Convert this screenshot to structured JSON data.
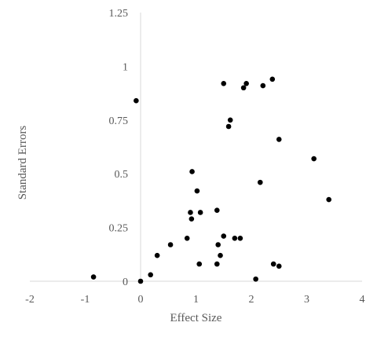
{
  "chart_data": {
    "type": "scatter",
    "title": "",
    "xlabel": "Effect Size",
    "ylabel": "Standard Errors",
    "xlim": [
      -2,
      4
    ],
    "ylim": [
      0,
      1.25
    ],
    "x_ticks": [
      "-2",
      "-1",
      "0",
      "1",
      "2",
      "3",
      "4"
    ],
    "y_ticks": [
      "0",
      "0.25",
      "0.5",
      "0.75",
      "1",
      "1.25"
    ],
    "grid": false,
    "legend": "none",
    "point_color": "#000000",
    "points": [
      {
        "x": -0.85,
        "y": 0.02
      },
      {
        "x": -0.08,
        "y": 0.84
      },
      {
        "x": 0.0,
        "y": 0.0
      },
      {
        "x": 0.18,
        "y": 0.03
      },
      {
        "x": 0.3,
        "y": 0.12
      },
      {
        "x": 0.54,
        "y": 0.17
      },
      {
        "x": 0.84,
        "y": 0.2
      },
      {
        "x": 0.9,
        "y": 0.32
      },
      {
        "x": 0.92,
        "y": 0.29
      },
      {
        "x": 0.93,
        "y": 0.51
      },
      {
        "x": 1.02,
        "y": 0.42
      },
      {
        "x": 1.06,
        "y": 0.08
      },
      {
        "x": 1.08,
        "y": 0.32
      },
      {
        "x": 1.38,
        "y": 0.08
      },
      {
        "x": 1.4,
        "y": 0.17
      },
      {
        "x": 1.38,
        "y": 0.33
      },
      {
        "x": 1.44,
        "y": 0.12
      },
      {
        "x": 1.5,
        "y": 0.21
      },
      {
        "x": 1.5,
        "y": 0.92
      },
      {
        "x": 1.59,
        "y": 0.72
      },
      {
        "x": 1.62,
        "y": 0.75
      },
      {
        "x": 1.7,
        "y": 0.2
      },
      {
        "x": 1.8,
        "y": 0.2
      },
      {
        "x": 1.86,
        "y": 0.9
      },
      {
        "x": 1.91,
        "y": 0.92
      },
      {
        "x": 2.08,
        "y": 0.01
      },
      {
        "x": 2.16,
        "y": 0.46
      },
      {
        "x": 2.21,
        "y": 0.91
      },
      {
        "x": 2.38,
        "y": 0.94
      },
      {
        "x": 2.4,
        "y": 0.08
      },
      {
        "x": 2.5,
        "y": 0.07
      },
      {
        "x": 2.5,
        "y": 0.66
      },
      {
        "x": 3.13,
        "y": 0.57
      },
      {
        "x": 3.4,
        "y": 0.38
      }
    ]
  }
}
